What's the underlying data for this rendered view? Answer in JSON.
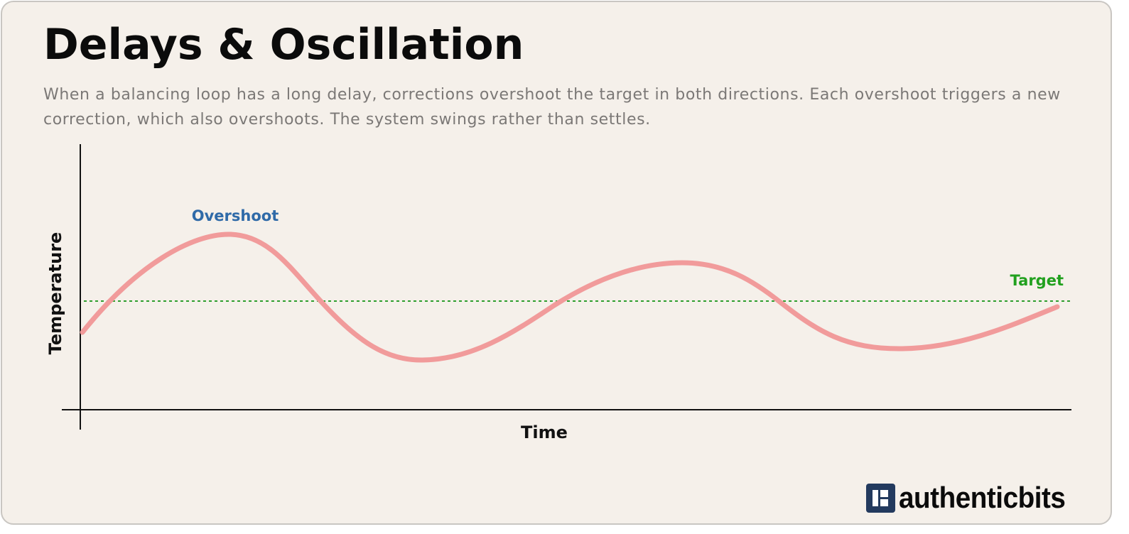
{
  "title": "Delays & Oscillation",
  "subtitle": "When a balancing loop has a long delay, corrections overshoot the target in both directions. Each overshoot triggers a new correction, which also overshoots. The system swings rather than settles.",
  "axes": {
    "x_label": "Time",
    "y_label": "Temperature"
  },
  "annotations": {
    "overshoot": "Overshoot",
    "target": "Target"
  },
  "colors": {
    "background": "#f5f0ea",
    "curve": "#f19b9b",
    "target_line": "#2e9e2e",
    "target_label": "#21a01e",
    "overshoot_label": "#2f6aa8",
    "axis": "#111111",
    "brand": "#233a5e"
  },
  "brand": {
    "name": "authenticbits",
    "icon": "authenticbits-logo-icon"
  }
}
